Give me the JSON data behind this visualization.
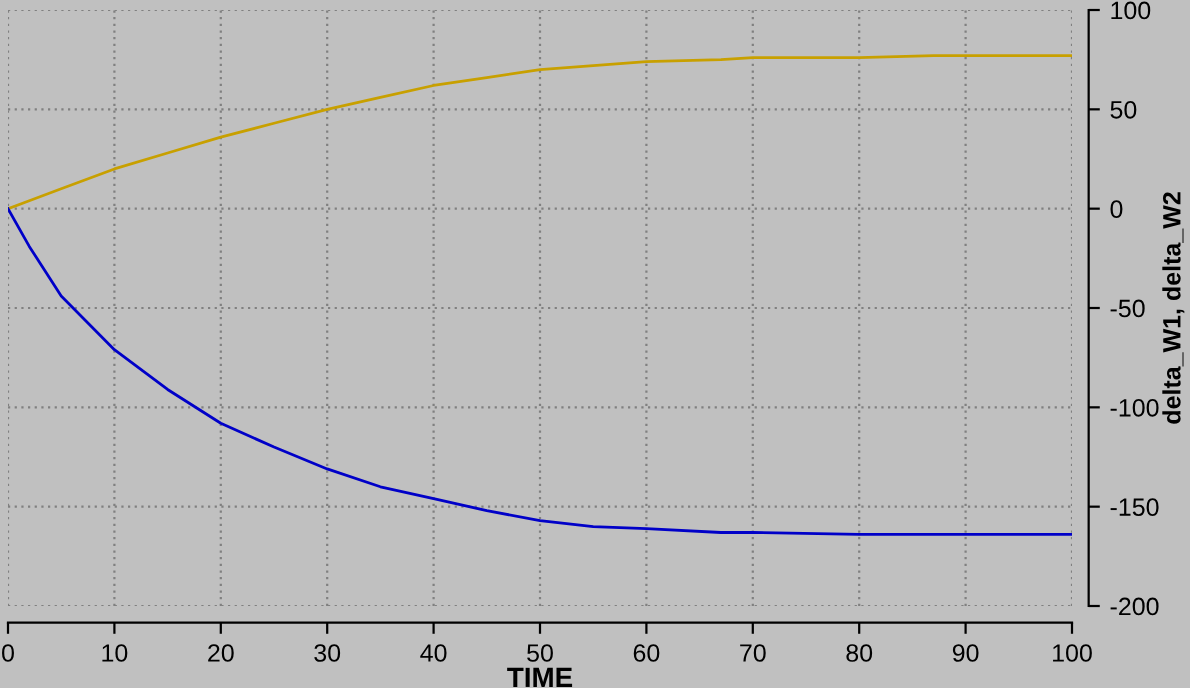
{
  "chart_data": {
    "type": "line",
    "xlabel": "TIME",
    "ylabel": "delta_W1, delta_W2",
    "x": [
      0,
      2,
      5,
      10,
      15,
      20,
      25,
      30,
      35,
      40,
      45,
      50,
      55,
      60,
      67,
      70,
      80,
      87,
      90,
      100
    ],
    "series": [
      {
        "color": "#c8a000",
        "values": [
          0,
          4,
          10,
          20,
          28,
          36,
          43,
          50,
          56,
          62,
          66,
          70,
          72,
          74,
          75,
          76,
          76,
          77,
          77,
          77
        ]
      },
      {
        "color": "#0000c8",
        "values": [
          0,
          -19,
          -44,
          -71,
          -91,
          -108,
          -120,
          -131,
          -140,
          -146,
          -152,
          -157,
          -160,
          -161,
          -163,
          -163,
          -164,
          -164,
          -164,
          -164
        ]
      }
    ],
    "xlim": [
      0,
      100
    ],
    "xticks": [
      0,
      10,
      20,
      30,
      40,
      50,
      60,
      70,
      80,
      90,
      100
    ],
    "ylim": [
      -200,
      100
    ],
    "yticks": [
      -200,
      -150,
      -100,
      -50,
      0,
      50,
      100
    ],
    "grid": true,
    "line_style": "solid",
    "marker": "none"
  }
}
